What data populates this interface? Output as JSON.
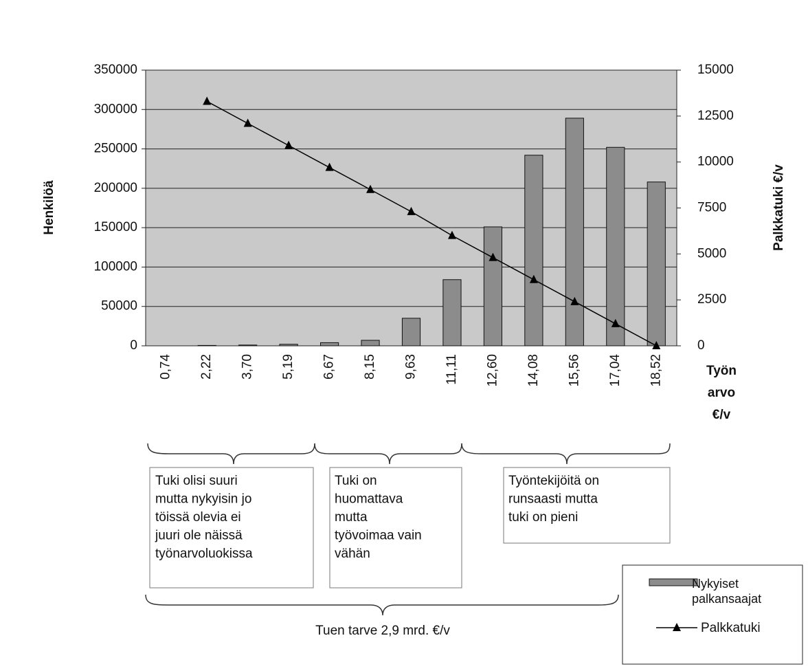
{
  "chart_data": {
    "type": "bar_line",
    "y_label": "Henkilöä",
    "y2_label": "Palkkatuki €/v",
    "x_label": [
      "Työn",
      "arvo",
      "€/v"
    ],
    "categories": [
      "0,74",
      "2,22",
      "3,70",
      "5,19",
      "6,67",
      "8,15",
      "9,63",
      "11,11",
      "12,60",
      "14,08",
      "15,56",
      "17,04",
      "18,52"
    ],
    "series": [
      {
        "name": "Nykyiset palkansaajat",
        "type": "bar",
        "color": "#8c8c8c",
        "values": [
          0,
          500,
          1000,
          2000,
          4000,
          7000,
          35000,
          84000,
          151000,
          242000,
          289000,
          252000,
          208000
        ]
      },
      {
        "name": "Palkkatuki",
        "type": "line",
        "axis": "y2",
        "color": "#000000",
        "values": [
          null,
          13300,
          12100,
          10900,
          9700,
          8500,
          7300,
          6000,
          4800,
          3600,
          2400,
          1200,
          0
        ]
      }
    ],
    "ylim": [
      0,
      350000
    ],
    "yticks": [
      0,
      50000,
      100000,
      150000,
      200000,
      250000,
      300000,
      350000
    ],
    "y2lim": [
      0,
      15000
    ],
    "y2ticks": [
      0,
      2500,
      5000,
      7500,
      10000,
      12500,
      15000
    ],
    "grid": true,
    "legend": "bottom-right",
    "annotations": {
      "box1": [
        "Tuki olisi suuri",
        "mutta nykyisin jo",
        "töissä olevia ei",
        "juuri ole näissä",
        "työnarvoluokissa"
      ],
      "box2": [
        "Tuki on",
        "huomattava",
        "mutta",
        "työvoimaa vain",
        "vähän"
      ],
      "box3": [
        "Työntekijöitä on",
        "runsaasti mutta",
        "tuki on pieni"
      ],
      "total": "Tuen tarve 2,9 mrd. €/v"
    }
  }
}
